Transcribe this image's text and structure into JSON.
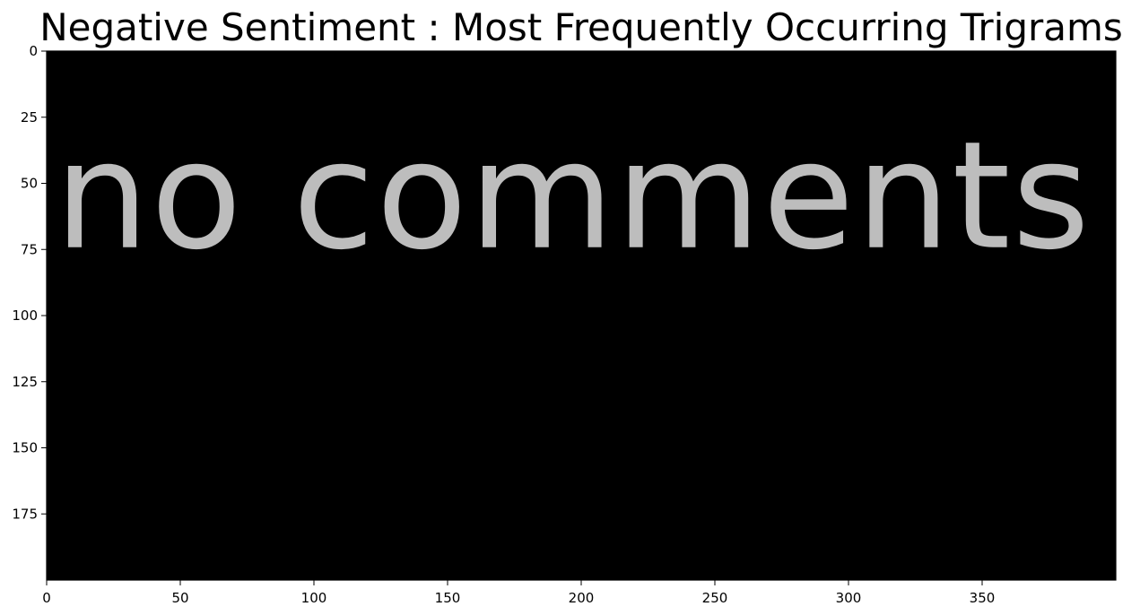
{
  "chart_data": {
    "type": "image",
    "title": "Negative Sentiment : Most Frequently Occurring Trigrams",
    "image_width": 400,
    "image_height": 200,
    "xlim": [
      0,
      400
    ],
    "ylim": [
      200,
      0
    ],
    "xticks": [
      0,
      50,
      100,
      150,
      200,
      250,
      300,
      350
    ],
    "yticks": [
      0,
      25,
      50,
      75,
      100,
      125,
      150,
      175
    ],
    "background_color": "#000000",
    "words": [
      {
        "text": "no comments",
        "x": 3,
        "y": 55,
        "color": "#bdbdbd"
      }
    ],
    "grid": false
  }
}
